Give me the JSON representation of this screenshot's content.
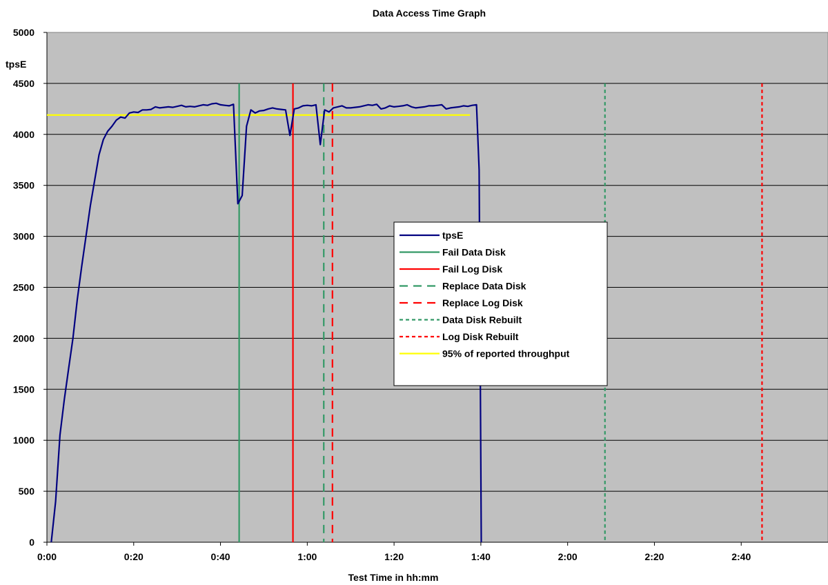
{
  "chart_data": {
    "type": "line",
    "title": "Data Access Time Graph",
    "xlabel": "Test Time in hh:mm",
    "ylabel": "tpsE",
    "xlim": [
      0,
      180
    ],
    "ylim": [
      0,
      5000
    ],
    "x_ticks": [
      {
        "value": 0,
        "label": "0:00"
      },
      {
        "value": 20,
        "label": "0:20"
      },
      {
        "value": 40,
        "label": "0:40"
      },
      {
        "value": 60,
        "label": "1:00"
      },
      {
        "value": 80,
        "label": "1:20"
      },
      {
        "value": 100,
        "label": "1:40"
      },
      {
        "value": 120,
        "label": "2:00"
      },
      {
        "value": 140,
        "label": "2:20"
      },
      {
        "value": 160,
        "label": "2:40"
      }
    ],
    "y_ticks": [
      0,
      500,
      1000,
      1500,
      2000,
      2500,
      3000,
      3500,
      4000,
      4500,
      5000
    ],
    "grid": true,
    "plot_background": "#c0c0c0",
    "legend_position": "center",
    "series": [
      {
        "name": "tpsE",
        "color": "#000080",
        "style": "solid",
        "x": [
          1,
          2,
          3,
          4,
          5,
          6,
          7,
          8,
          9,
          10,
          11,
          12,
          13,
          14,
          15,
          16,
          17,
          18,
          19,
          20,
          21,
          22,
          23,
          24,
          25,
          26,
          27,
          28,
          29,
          30,
          31,
          32,
          33,
          34,
          35,
          36,
          37,
          38,
          39,
          40,
          41,
          42,
          43,
          44,
          45,
          46,
          47,
          48,
          49,
          50,
          51,
          52,
          53,
          54,
          55,
          56,
          57,
          58,
          59,
          60,
          61,
          62,
          63,
          64,
          65,
          66,
          67,
          68,
          69,
          70,
          71,
          72,
          73,
          74,
          75,
          76,
          77,
          78,
          79,
          80,
          81,
          82,
          83,
          84,
          85,
          86,
          87,
          88,
          89,
          90,
          91,
          92,
          93,
          94,
          95,
          96,
          97,
          98,
          99,
          99.6,
          100.1
        ],
        "y": [
          0,
          400,
          1050,
          1400,
          1700,
          2000,
          2380,
          2700,
          3000,
          3300,
          3550,
          3800,
          3950,
          4030,
          4080,
          4140,
          4170,
          4160,
          4210,
          4220,
          4215,
          4240,
          4240,
          4245,
          4270,
          4260,
          4265,
          4270,
          4265,
          4275,
          4285,
          4270,
          4275,
          4270,
          4280,
          4290,
          4285,
          4300,
          4305,
          4290,
          4285,
          4280,
          4295,
          3320,
          3400,
          4080,
          4240,
          4210,
          4230,
          4235,
          4250,
          4260,
          4250,
          4245,
          4240,
          3990,
          4250,
          4260,
          4280,
          4285,
          4280,
          4290,
          3900,
          4240,
          4220,
          4260,
          4270,
          4280,
          4260,
          4260,
          4265,
          4270,
          4280,
          4290,
          4285,
          4295,
          4250,
          4260,
          4280,
          4270,
          4275,
          4280,
          4290,
          4270,
          4260,
          4265,
          4270,
          4280,
          4280,
          4285,
          4290,
          4250,
          4260,
          4265,
          4270,
          4280,
          4275,
          4285,
          4290,
          3650,
          0
        ]
      },
      {
        "name": "Fail Data Disk",
        "color": "#339966",
        "style": "solid",
        "vline": 44.3,
        "ymax": 4500
      },
      {
        "name": "Fail Log Disk",
        "color": "#ff0000",
        "style": "solid",
        "vline": 56.7,
        "ymax": 4500
      },
      {
        "name": "Replace Data Disk",
        "color": "#339966",
        "style": "dashed",
        "vline": 63.8,
        "ymax": 4500
      },
      {
        "name": "Replace Log Disk",
        "color": "#ff0000",
        "style": "dashed",
        "vline": 65.8,
        "ymax": 4500
      },
      {
        "name": "Data Disk Rebuilt",
        "color": "#339966",
        "style": "dotted",
        "vline": 128.6,
        "ymax": 4500
      },
      {
        "name": "Log Disk Rebuilt",
        "color": "#ff0000",
        "style": "dotted",
        "vline": 164.8,
        "ymax": 4500
      },
      {
        "name": "95% of reported throughput",
        "color": "#ffff00",
        "style": "solid",
        "hline": 4190,
        "x": [
          0,
          97.5
        ]
      }
    ]
  }
}
